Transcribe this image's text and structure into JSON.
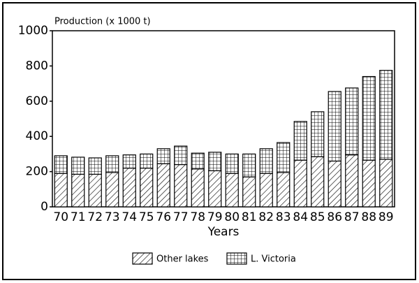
{
  "chart_data": {
    "type": "stacked-bar",
    "y_label": "Production (x 1000 t)",
    "x_label": "Years",
    "categories": [
      "70",
      "71",
      "72",
      "73",
      "74",
      "75",
      "76",
      "77",
      "78",
      "79",
      "80",
      "81",
      "82",
      "83",
      "84",
      "85",
      "86",
      "87",
      "88",
      "89"
    ],
    "series": [
      {
        "name": "Other lakes",
        "color": "#000000",
        "pattern": "hatch",
        "values": [
          190,
          185,
          185,
          195,
          220,
          220,
          245,
          240,
          215,
          205,
          190,
          170,
          190,
          195,
          265,
          285,
          260,
          295,
          265,
          270
        ]
      },
      {
        "name": "L. Victoria",
        "color": "#000000",
        "pattern": "grid",
        "values": [
          100,
          97,
          93,
          95,
          75,
          80,
          85,
          105,
          90,
          105,
          110,
          130,
          140,
          170,
          220,
          255,
          395,
          380,
          475,
          505
        ]
      }
    ],
    "ylim": [
      0,
      1000
    ],
    "yticks": [
      0,
      200,
      400,
      600,
      800,
      1000
    ]
  }
}
